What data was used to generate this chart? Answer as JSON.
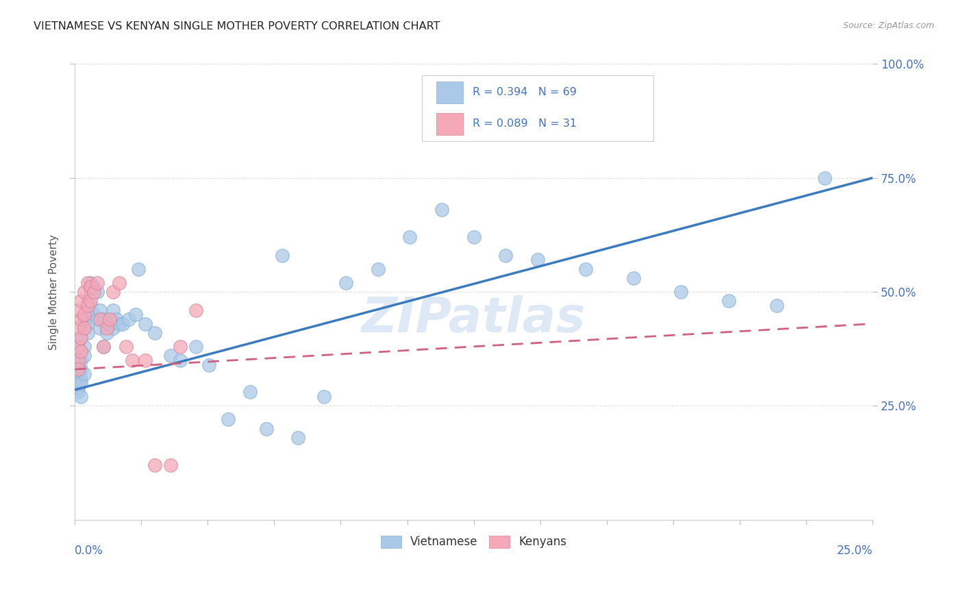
{
  "title": "VIETNAMESE VS KENYAN SINGLE MOTHER POVERTY CORRELATION CHART",
  "source": "Source: ZipAtlas.com",
  "ylabel": "Single Mother Poverty",
  "watermark": "ZIPatlas",
  "blue_scatter_color": "#aac9e8",
  "blue_scatter_edge": "#88aed0",
  "blue_line_color": "#3a7abf",
  "pink_scatter_color": "#f4a8b8",
  "pink_scatter_edge": "#d88098",
  "pink_line_color": "#d06080",
  "axis_label_color": "#4472c4",
  "legend_text_color": "#4472c4",
  "grid_color": "#dddddd",
  "viet_R": 0.394,
  "viet_N": 69,
  "keny_R": 0.089,
  "keny_N": 31,
  "viet_line_x0": 0.0,
  "viet_line_y0": 0.285,
  "viet_line_x1": 0.25,
  "viet_line_y1": 0.75,
  "keny_line_x0": 0.0,
  "keny_line_y0": 0.33,
  "keny_line_x1": 0.25,
  "keny_line_y1": 0.43,
  "xmin": 0.0,
  "xmax": 0.25,
  "ymin": 0.0,
  "ymax": 1.0,
  "viet_x": [
    0.001,
    0.001,
    0.001,
    0.001,
    0.001,
    0.001,
    0.001,
    0.002,
    0.002,
    0.002,
    0.002,
    0.002,
    0.002,
    0.003,
    0.003,
    0.003,
    0.003,
    0.003,
    0.004,
    0.004,
    0.004,
    0.004,
    0.005,
    0.005,
    0.005,
    0.006,
    0.006,
    0.007,
    0.007,
    0.008,
    0.008,
    0.009,
    0.009,
    0.01,
    0.01,
    0.011,
    0.012,
    0.012,
    0.013,
    0.014,
    0.015,
    0.017,
    0.019,
    0.02,
    0.022,
    0.025,
    0.03,
    0.033,
    0.038,
    0.042,
    0.048,
    0.055,
    0.06,
    0.065,
    0.07,
    0.078,
    0.085,
    0.095,
    0.105,
    0.115,
    0.125,
    0.135,
    0.145,
    0.16,
    0.175,
    0.19,
    0.205,
    0.22,
    0.235
  ],
  "viet_y": [
    0.32,
    0.34,
    0.3,
    0.28,
    0.36,
    0.38,
    0.29,
    0.33,
    0.35,
    0.31,
    0.27,
    0.4,
    0.3,
    0.44,
    0.42,
    0.38,
    0.36,
    0.32,
    0.45,
    0.43,
    0.41,
    0.48,
    0.5,
    0.52,
    0.47,
    0.51,
    0.45,
    0.5,
    0.44,
    0.46,
    0.42,
    0.38,
    0.44,
    0.43,
    0.41,
    0.43,
    0.46,
    0.42,
    0.44,
    0.43,
    0.43,
    0.44,
    0.45,
    0.55,
    0.43,
    0.41,
    0.36,
    0.35,
    0.38,
    0.34,
    0.22,
    0.28,
    0.2,
    0.58,
    0.18,
    0.27,
    0.52,
    0.55,
    0.62,
    0.68,
    0.62,
    0.58,
    0.57,
    0.55,
    0.53,
    0.5,
    0.48,
    0.47,
    0.75
  ],
  "keny_x": [
    0.001,
    0.001,
    0.001,
    0.001,
    0.001,
    0.002,
    0.002,
    0.002,
    0.002,
    0.003,
    0.003,
    0.003,
    0.004,
    0.004,
    0.005,
    0.005,
    0.006,
    0.007,
    0.008,
    0.009,
    0.01,
    0.011,
    0.012,
    0.014,
    0.016,
    0.018,
    0.022,
    0.025,
    0.03,
    0.033,
    0.038
  ],
  "keny_y": [
    0.35,
    0.33,
    0.42,
    0.46,
    0.38,
    0.48,
    0.44,
    0.37,
    0.4,
    0.5,
    0.45,
    0.42,
    0.52,
    0.47,
    0.51,
    0.48,
    0.5,
    0.52,
    0.44,
    0.38,
    0.42,
    0.44,
    0.5,
    0.52,
    0.38,
    0.35,
    0.35,
    0.12,
    0.12,
    0.38,
    0.46
  ]
}
